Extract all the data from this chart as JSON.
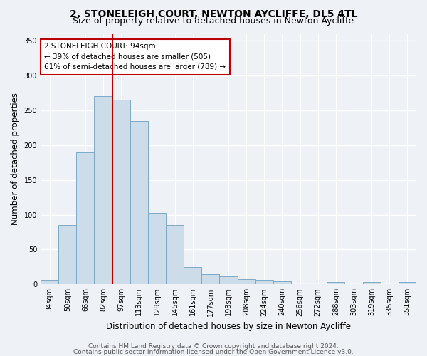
{
  "title": "2, STONELEIGH COURT, NEWTON AYCLIFFE, DL5 4TL",
  "subtitle": "Size of property relative to detached houses in Newton Aycliffe",
  "xlabel": "Distribution of detached houses by size in Newton Aycliffe",
  "ylabel": "Number of detached properties",
  "categories": [
    "34sqm",
    "50sqm",
    "66sqm",
    "82sqm",
    "97sqm",
    "113sqm",
    "129sqm",
    "145sqm",
    "161sqm",
    "177sqm",
    "193sqm",
    "208sqm",
    "224sqm",
    "240sqm",
    "256sqm",
    "272sqm",
    "288sqm",
    "303sqm",
    "319sqm",
    "335sqm",
    "351sqm"
  ],
  "values": [
    6,
    85,
    190,
    270,
    265,
    235,
    103,
    85,
    25,
    15,
    12,
    7,
    6,
    4,
    0,
    0,
    3,
    0,
    3,
    0,
    3
  ],
  "bar_color": "#ccdce8",
  "bar_edge_color": "#7aaac8",
  "vline_x": 3.5,
  "vline_color": "#bb0000",
  "annotation_text": "2 STONELEIGH COURT: 94sqm\n← 39% of detached houses are smaller (505)\n61% of semi-detached houses are larger (789) →",
  "annotation_box_color": "#ffffff",
  "annotation_box_edge_color": "#bb0000",
  "ylim": [
    0,
    360
  ],
  "yticks": [
    0,
    50,
    100,
    150,
    200,
    250,
    300,
    350
  ],
  "footnote1": "Contains HM Land Registry data © Crown copyright and database right 2024.",
  "footnote2": "Contains public sector information licensed under the Open Government Licence v3.0.",
  "background_color": "#eef2f7",
  "plot_background_color": "#eef2f7",
  "title_fontsize": 10,
  "subtitle_fontsize": 9,
  "axis_label_fontsize": 8.5,
  "tick_fontsize": 7,
  "footnote_fontsize": 6.5,
  "annotation_fontsize": 7.5
}
